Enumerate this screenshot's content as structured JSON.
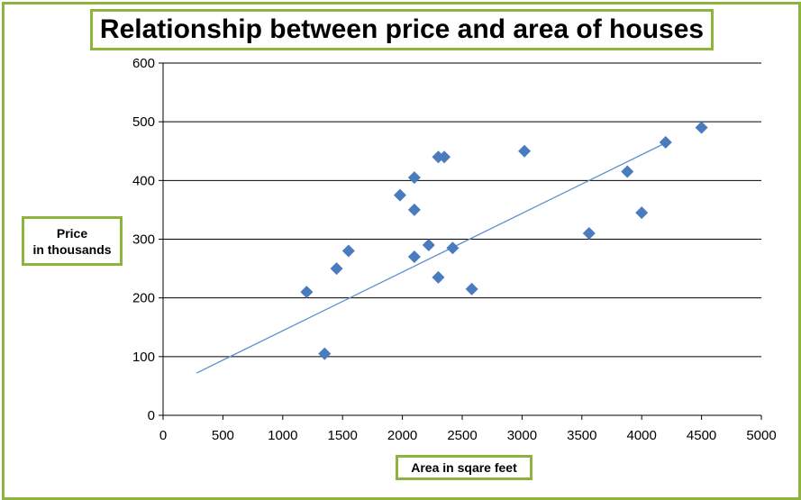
{
  "chart_data": {
    "type": "scatter",
    "title": "Relationship between price and area of houses",
    "ylabel_lines": [
      "Price",
      "in thousands"
    ],
    "xlabel": "Area in sqare feet",
    "xlim": [
      0,
      5000
    ],
    "ylim": [
      0,
      600
    ],
    "x_ticks": [
      0,
      500,
      1000,
      1500,
      2000,
      2500,
      3000,
      3500,
      4000,
      4500,
      5000
    ],
    "y_ticks": [
      0,
      100,
      200,
      300,
      400,
      500,
      600
    ],
    "grid": "horizontal",
    "legend": "none",
    "points": [
      {
        "x": 1200,
        "y": 210
      },
      {
        "x": 1350,
        "y": 105
      },
      {
        "x": 1450,
        "y": 250
      },
      {
        "x": 1550,
        "y": 280
      },
      {
        "x": 1980,
        "y": 375
      },
      {
        "x": 2100,
        "y": 405
      },
      {
        "x": 2100,
        "y": 350
      },
      {
        "x": 2100,
        "y": 270
      },
      {
        "x": 2220,
        "y": 290
      },
      {
        "x": 2300,
        "y": 440
      },
      {
        "x": 2350,
        "y": 440
      },
      {
        "x": 2300,
        "y": 235
      },
      {
        "x": 2420,
        "y": 285
      },
      {
        "x": 2580,
        "y": 215
      },
      {
        "x": 3020,
        "y": 450
      },
      {
        "x": 3560,
        "y": 310
      },
      {
        "x": 3880,
        "y": 415
      },
      {
        "x": 4000,
        "y": 345
      },
      {
        "x": 4200,
        "y": 465
      },
      {
        "x": 4500,
        "y": 490
      }
    ],
    "trendline": {
      "x": [
        280,
        4200
      ],
      "y": [
        72,
        464
      ]
    },
    "colors": {
      "marker": "#4A7BBE",
      "trendline": "#5B8FCF",
      "frame": "#8DB43E",
      "grid": "#000000"
    }
  }
}
